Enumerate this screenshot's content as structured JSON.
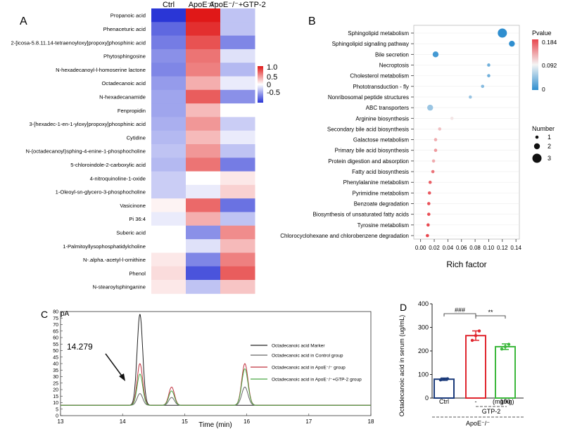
{
  "panels": {
    "A": "A",
    "B": "B",
    "C": "C",
    "D": "D"
  },
  "chart_data": [
    {
      "panel": "A",
      "type": "heatmap",
      "columns": [
        "Ctrl",
        "ApoE⁻/⁻",
        "ApoE⁻/⁻+GTP-2"
      ],
      "rows": [
        "Propanoic acid",
        "Phenaceturic acid",
        "2-[icosa-5.8.11.14-tetraenoyloxy]propoxy]phosphinic acid",
        "Phytosphingosine",
        "N-hexadecanoyl-l-homoserine lactone",
        "Octadecanoic acid",
        "N-hexadecanamide",
        "Fenpropidin",
        "3-[hexadec-1-en-1-yloxy]propoxy]phosphinic acid",
        "Cytidine",
        "N-(octadecanoyl)sphing-4-enine-1-phosphocholine",
        "5-chloroindole-2-carboxylic acid",
        "4-nitroquinoline-1-oxide",
        "1-Oleoyl-sn-glycero-3-phosphocholine",
        "Vasicinone",
        "Pi 36:4",
        "Suberic acid",
        "1-Palmitoyllysophosphatidylcholine",
        "N-.alpha.-acetyl-l-ornithine",
        "Phenol",
        "N-stearoylsphinganine"
      ],
      "values": [
        [
          -1.0,
          1.0,
          -0.3
        ],
        [
          -0.75,
          0.9,
          -0.3
        ],
        [
          -0.65,
          0.75,
          -0.6
        ],
        [
          -0.55,
          0.6,
          -0.15
        ],
        [
          -0.6,
          0.55,
          -0.35
        ],
        [
          -0.5,
          0.35,
          -0.1
        ],
        [
          -0.45,
          0.7,
          -0.55
        ],
        [
          -0.45,
          0.3,
          0.0
        ],
        [
          -0.4,
          0.45,
          -0.25
        ],
        [
          -0.35,
          0.3,
          -0.1
        ],
        [
          -0.3,
          0.45,
          -0.3
        ],
        [
          -0.35,
          0.6,
          -0.65
        ],
        [
          -0.25,
          0.0,
          0.1
        ],
        [
          -0.25,
          -0.1,
          0.2
        ],
        [
          0.05,
          0.65,
          -0.7
        ],
        [
          -0.1,
          0.35,
          -0.3
        ],
        [
          0.0,
          -0.55,
          0.5
        ],
        [
          0.0,
          -0.15,
          0.3
        ],
        [
          0.1,
          -0.6,
          0.55
        ],
        [
          0.15,
          -0.85,
          0.7
        ],
        [
          0.1,
          -0.3,
          0.25
        ]
      ],
      "colorbar": {
        "ticks": [
          "1.0",
          "0.5",
          "0",
          "-0.5"
        ],
        "range": [
          -1,
          1
        ]
      },
      "colors": {
        "low": "#2a36d6",
        "mid": "#ffffff",
        "high": "#e01818"
      }
    },
    {
      "panel": "B",
      "type": "scatter",
      "xlabel": "Rich factor",
      "xlim": [
        -0.01,
        0.145
      ],
      "xticks": [
        "0.00",
        "0.02",
        "0.04",
        "0.06",
        "0.08",
        "0.10",
        "0.12",
        "0.14"
      ],
      "categories": [
        "Sphingolipid metabolism",
        "Sphingolipid signaling pathway",
        "Bile secretion",
        "Necroptosis",
        "Cholesterol metabolism",
        "Phototransduction - fly",
        "Nonribosomal peptide structures",
        "ABC transporters",
        "Arginine biosynthesis",
        "Secondary bile acid biosynthesis",
        "Galactose metabolism",
        "Primary bile acid biosynthesis",
        "Protein digestion and absorption",
        "Fatty acid biosynthesis",
        "Phenylalanine metabolism",
        "Pyrimidine metabolism",
        "Benzoate degradation",
        "Biosynthesis of unsaturated fatty acids",
        "Tyrosine metabolism",
        "Chlorocyclohexane and chlorobenzene degradation"
      ],
      "rich_factor": [
        0.12,
        0.134,
        0.022,
        0.1,
        0.1,
        0.091,
        0.073,
        0.014,
        0.046,
        0.028,
        0.022,
        0.022,
        0.019,
        0.018,
        0.014,
        0.013,
        0.012,
        0.012,
        0.011,
        0.01
      ],
      "number": [
        3,
        2,
        2,
        1,
        1,
        1,
        1,
        2,
        1,
        1,
        1,
        1,
        1,
        1,
        1,
        1,
        1,
        1,
        1,
        1
      ],
      "pvalue": [
        0.0,
        0.0,
        0.01,
        0.03,
        0.03,
        0.04,
        0.05,
        0.05,
        0.1,
        0.12,
        0.13,
        0.14,
        0.13,
        0.16,
        0.17,
        0.175,
        0.178,
        0.18,
        0.182,
        0.184
      ],
      "legend_pvalue": {
        "title": "Pvalue",
        "ticks": [
          "0.184",
          "0.092",
          "0"
        ]
      },
      "legend_size": {
        "title": "Number",
        "labels": [
          "1",
          "2",
          "3"
        ]
      },
      "colors": {
        "low": "#2f8ecf",
        "mid": "#f4f4f4",
        "high": "#e8454d"
      }
    },
    {
      "panel": "C",
      "type": "line",
      "ylabel": "pA",
      "xlabel": "Time (min)",
      "xlim": [
        13,
        18
      ],
      "ylim": [
        0,
        80
      ],
      "xticks": [
        "13",
        "14",
        "15",
        "16",
        "17",
        "18"
      ],
      "yticks": [
        "0",
        "5",
        "10",
        "15",
        "20",
        "25",
        "30",
        "35",
        "40",
        "45",
        "50",
        "55",
        "60",
        "65",
        "70",
        "75",
        "80"
      ],
      "annotation": "14.279",
      "series": [
        {
          "name": "Octadecanoic acid Marker",
          "color": "#222222",
          "baseline": 8,
          "peaks": [
            [
              14.279,
              70,
              0.045
            ]
          ]
        },
        {
          "name": "Octadecanoic acid in Control group",
          "color": "#666666",
          "baseline": 8,
          "peaks": [
            [
              14.279,
              9,
              0.045
            ],
            [
              14.79,
              6,
              0.045
            ],
            [
              15.97,
              14,
              0.05
            ]
          ]
        },
        {
          "name": "Octadecanoic acid in ApoE⁻/⁻ group",
          "color": "#c0313f",
          "baseline": 8,
          "peaks": [
            [
              14.279,
              32,
              0.045
            ],
            [
              14.79,
              14,
              0.045
            ],
            [
              15.97,
              32,
              0.05
            ]
          ]
        },
        {
          "name": "Octadecanoic acid in ApoE⁻/⁻+GTP-2 group",
          "color": "#4aa843",
          "baseline": 8,
          "peaks": [
            [
              14.279,
              24,
              0.045
            ],
            [
              14.79,
              11,
              0.045
            ],
            [
              15.97,
              28,
              0.05
            ]
          ]
        }
      ]
    },
    {
      "panel": "D",
      "type": "bar",
      "ylabel": "Octadecanoic acid in serum (ug/mL)",
      "ylim": [
        0,
        400
      ],
      "yticks": [
        "0",
        "100",
        "200",
        "300",
        "400"
      ],
      "categories": [
        "Ctrl",
        "-",
        "100"
      ],
      "units_label": "(mg/kg)",
      "dose_label": "GTP-2",
      "group_label": "ApoE⁻/⁻",
      "series": [
        {
          "name": "Octadecanoic acid",
          "values": [
            80,
            265,
            218
          ]
        }
      ],
      "errors": [
        5,
        20,
        12
      ],
      "points": [
        [
          77,
          80,
          82
        ],
        [
          245,
          265,
          285
        ],
        [
          208,
          218,
          228
        ]
      ],
      "colors": [
        "#1a3a7a",
        "#e0262e",
        "#3cb83c"
      ],
      "significance": [
        {
          "from": 0,
          "to": 1,
          "label": "###"
        },
        {
          "from": 1,
          "to": 2,
          "label": "**"
        }
      ]
    }
  ]
}
